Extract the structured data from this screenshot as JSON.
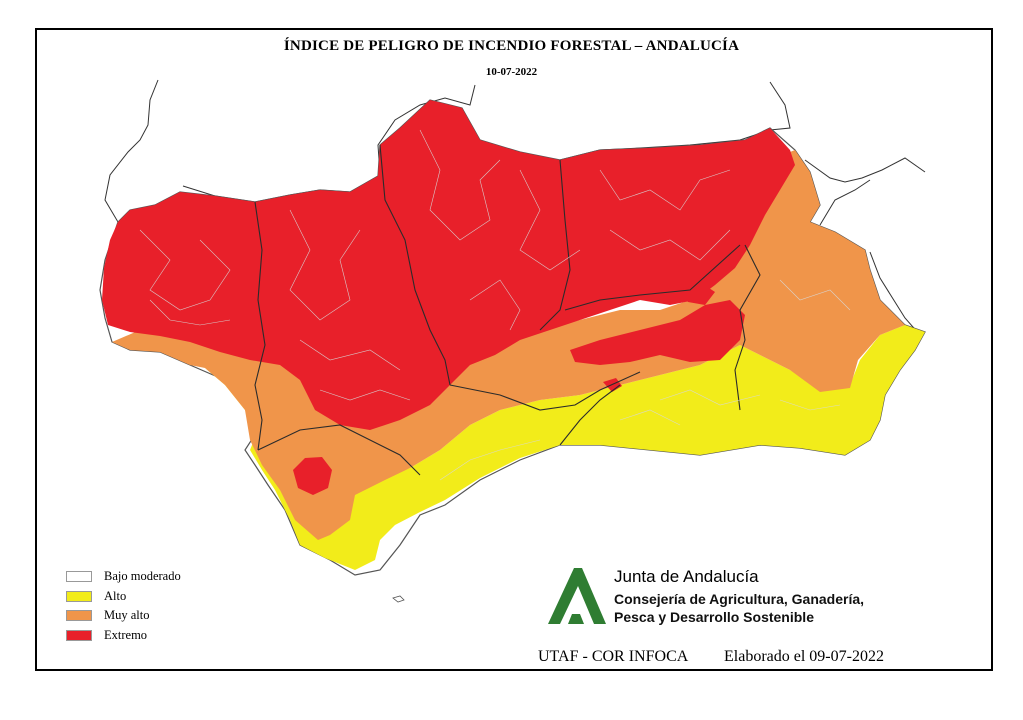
{
  "map": {
    "title": "ÍNDICE DE PELIGRO DE INCENDIO FORESTAL – ANDALUCÍA",
    "date": "10-07-2022"
  },
  "legend": [
    {
      "label": "Bajo moderado",
      "color": "#ffffff"
    },
    {
      "label": "Alto",
      "color": "#f2ec1a"
    },
    {
      "label": "Muy alto",
      "color": "#f0954a"
    },
    {
      "label": "Extremo",
      "color": "#e8202a"
    }
  ],
  "organization": {
    "name": "Junta de Andalucía",
    "department_line1": "Consejería de Agricultura, Ganadería,",
    "department_line2": "Pesca y Desarrollo Sostenible",
    "brand_color": "#2f7d32"
  },
  "footer": {
    "source": "UTAF - COR INFOCA",
    "elaborated": "Elaborado el  09-07-2022"
  }
}
